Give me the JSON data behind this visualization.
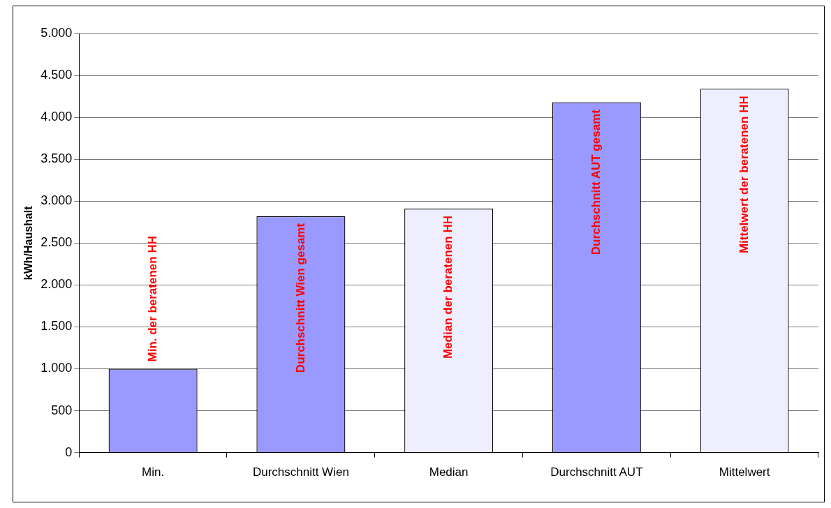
{
  "chart_data": {
    "type": "bar",
    "ylabel": "kWh/Haushalt",
    "categories": [
      "Min.",
      "Durchschnitt Wien",
      "Median",
      "Durchschnitt AUT",
      "Mittelwert"
    ],
    "values": [
      1000,
      2820,
      2910,
      4180,
      4340
    ],
    "colors": [
      "#9999ff",
      "#9999ff",
      "#eeeeff",
      "#9999ff",
      "#eeeeff"
    ],
    "ylim": [
      0,
      5000
    ],
    "yticks": [
      {
        "value": 0,
        "label": "0"
      },
      {
        "value": 500,
        "label": "500"
      },
      {
        "value": 1000,
        "label": "1.000"
      },
      {
        "value": 1500,
        "label": "1.500"
      },
      {
        "value": 2000,
        "label": "2.000"
      },
      {
        "value": 2500,
        "label": "2.500"
      },
      {
        "value": 3000,
        "label": "3.000"
      },
      {
        "value": 3500,
        "label": "3.500"
      },
      {
        "value": 4000,
        "label": "4.000"
      },
      {
        "value": 4500,
        "label": "4.500"
      },
      {
        "value": 5000,
        "label": "5.000"
      }
    ],
    "grid": "y",
    "legend": false,
    "annotations": [
      "Min. der beratenen HH",
      "Durchschnitt Wien gesamt",
      "Median der beratenen HH",
      "Durchschnitt AUT gesamt",
      "Mittelwert der beratenen HH"
    ]
  }
}
